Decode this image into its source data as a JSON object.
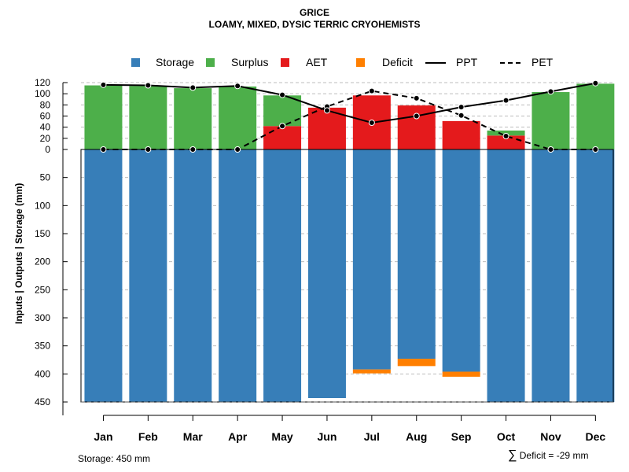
{
  "chart_data": {
    "type": "bar",
    "title": "GRICE",
    "subtitle": "LOAMY, MIXED, DYSIC TERRIC CRYOHEMISTS",
    "ylabel": "Inputs | Outputs | Storage     (mm)",
    "categories": [
      "Jan",
      "Feb",
      "Mar",
      "Apr",
      "May",
      "Jun",
      "Jul",
      "Aug",
      "Sep",
      "Oct",
      "Nov",
      "Dec"
    ],
    "upper_ticks": [
      "120",
      "100",
      "80",
      "60",
      "40",
      "20",
      "0"
    ],
    "lower_ticks": [
      "50",
      "100",
      "150",
      "200",
      "250",
      "300",
      "350",
      "400",
      "450"
    ],
    "upper_range": [
      0,
      120
    ],
    "lower_range": [
      0,
      450
    ],
    "series": [
      {
        "name": "Storage",
        "color": "#377EB8",
        "values": [
          450,
          450,
          450,
          450,
          450,
          443,
          392,
          373,
          396,
          450,
          450,
          450
        ]
      },
      {
        "name": "Surplus",
        "color": "#4DAF4A",
        "values": [
          115,
          114,
          110,
          113,
          55,
          0,
          0,
          0,
          0,
          9,
          103,
          118
        ]
      },
      {
        "name": "AET",
        "color": "#E41A1C",
        "values": [
          0,
          0,
          0,
          0,
          42,
          75,
          97,
          79,
          51,
          25,
          0,
          0
        ]
      },
      {
        "name": "Deficit",
        "color": "#FF7F00",
        "values": [
          0,
          0,
          0,
          0,
          0,
          0,
          7,
          13,
          9,
          0,
          0,
          0
        ]
      },
      {
        "name": "PPT",
        "style": "solid",
        "values": [
          116,
          115,
          111,
          114,
          98,
          70,
          48,
          60,
          76,
          88,
          104,
          119
        ]
      },
      {
        "name": "PET",
        "style": "dashed",
        "values": [
          0,
          0,
          0,
          0,
          42,
          77,
          105,
          92,
          61,
          24,
          0,
          0
        ]
      }
    ]
  },
  "legend": [
    {
      "label": "Storage",
      "color": "#377EB8",
      "kind": "box"
    },
    {
      "label": "Surplus",
      "color": "#4DAF4A",
      "kind": "box"
    },
    {
      "label": "AET",
      "color": "#E41A1C",
      "kind": "box"
    },
    {
      "label": "Deficit",
      "color": "#FF7F00",
      "kind": "box"
    },
    {
      "label": "PPT",
      "color": "#000000",
      "kind": "solid"
    },
    {
      "label": "PET",
      "color": "#000000",
      "kind": "dashed"
    }
  ],
  "footer": {
    "storage": "Storage: 450 mm",
    "sigma": "∑",
    "deficit": "Deficit = -29 mm"
  }
}
